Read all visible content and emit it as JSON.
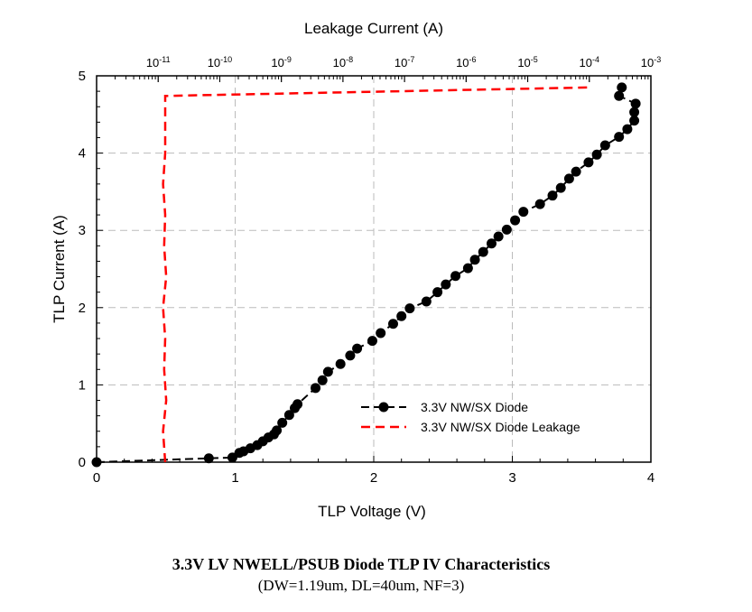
{
  "chart_data": {
    "type": "scatter",
    "title": "3.3V LV NWELL/PSUB Diode TLP IV Characteristics",
    "subtitle": "(DW=1.19um, DL=40um, NF=3)",
    "xlabel": "TLP Voltage (V)",
    "ylabel": "TLP Current (A)",
    "x2label": "Leakage Current (A)",
    "xlim": [
      0,
      4
    ],
    "ylim": [
      0,
      5
    ],
    "x2lim_log10": [
      -12,
      -3
    ],
    "xticks": [
      "0",
      "1",
      "2",
      "3",
      "4"
    ],
    "yticks": [
      "0",
      "1",
      "2",
      "3",
      "4",
      "5"
    ],
    "x2ticks": [
      {
        "base": "10",
        "exp": "-11"
      },
      {
        "base": "10",
        "exp": "-10"
      },
      {
        "base": "10",
        "exp": "-9"
      },
      {
        "base": "10",
        "exp": "-8"
      },
      {
        "base": "10",
        "exp": "-7"
      },
      {
        "base": "10",
        "exp": "-6"
      },
      {
        "base": "10",
        "exp": "-5"
      },
      {
        "base": "10",
        "exp": "-4"
      },
      {
        "base": "10",
        "exp": "-3"
      }
    ],
    "grid": true,
    "legend_position": "bottom-right",
    "series": [
      {
        "name": "3.3V NW/SX Diode",
        "color": "#000000",
        "axis": "bottom",
        "x": [
          0,
          0.81,
          0.98,
          1.03,
          1.06,
          1.11,
          1.16,
          1.2,
          1.24,
          1.28,
          1.3,
          1.34,
          1.39,
          1.43,
          1.45,
          1.58,
          1.63,
          1.67,
          1.76,
          1.83,
          1.88,
          1.99,
          2.05,
          2.14,
          2.2,
          2.26,
          2.38,
          2.46,
          2.52,
          2.59,
          2.68,
          2.73,
          2.79,
          2.85,
          2.9,
          2.96,
          3.02,
          3.08,
          3.2,
          3.29,
          3.35,
          3.41,
          3.46,
          3.55,
          3.61,
          3.67,
          3.77,
          3.83,
          3.88,
          3.88,
          3.89,
          3.77,
          3.79
        ],
        "y": [
          0,
          0.05,
          0.06,
          0.12,
          0.14,
          0.18,
          0.22,
          0.27,
          0.32,
          0.36,
          0.41,
          0.51,
          0.61,
          0.7,
          0.75,
          0.96,
          1.06,
          1.17,
          1.27,
          1.38,
          1.47,
          1.57,
          1.67,
          1.79,
          1.89,
          1.99,
          2.08,
          2.2,
          2.3,
          2.41,
          2.51,
          2.62,
          2.72,
          2.83,
          2.92,
          3.01,
          3.13,
          3.24,
          3.34,
          3.45,
          3.55,
          3.67,
          3.76,
          3.88,
          3.98,
          4.1,
          4.21,
          4.31,
          4.42,
          4.53,
          4.64,
          4.74,
          4.85
        ]
      },
      {
        "name": "3.3V NW/SX Diode Leakage",
        "color": "#ff0000",
        "axis": "top",
        "x": [
          1.3e-11,
          1.2e-11,
          1.35e-11,
          1.25e-11,
          1.3e-11,
          1.2e-11,
          1.35e-11,
          1.25e-11,
          1.3e-11,
          1.2e-11,
          1.3e-11,
          1.3e-11,
          0.000105
        ],
        "y": [
          0,
          0.4,
          0.8,
          1.2,
          1.6,
          2.0,
          2.4,
          2.8,
          3.2,
          3.6,
          4.0,
          4.74,
          4.85
        ]
      }
    ]
  }
}
